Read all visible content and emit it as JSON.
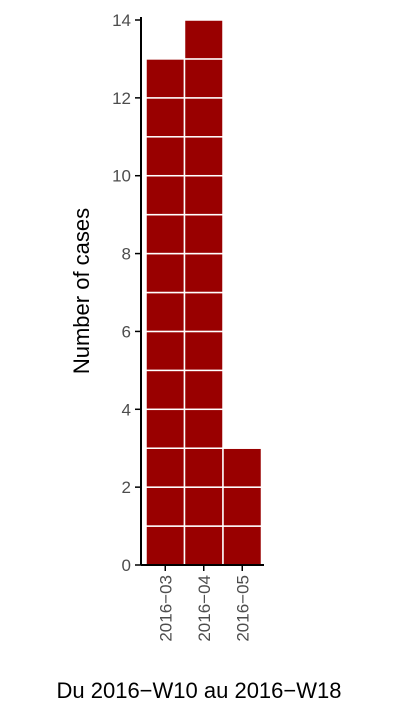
{
  "chart_data": {
    "type": "bar",
    "categories": [
      "2016−03",
      "2016−04",
      "2016−05"
    ],
    "values": [
      13,
      14,
      3
    ],
    "stacked_unit": 1,
    "xlabel": "Du 2016−W10 au 2016−W18",
    "ylabel": "Number of cases",
    "ylim": [
      0,
      14
    ],
    "yticks": [
      0,
      2,
      4,
      6,
      8,
      10,
      12,
      14
    ],
    "grid": false,
    "legend": "none",
    "colors": {
      "bar": "#990000",
      "bar_stroke": "#ffffff",
      "axis": "#000000",
      "tick_text": "#4d4d4d"
    }
  }
}
